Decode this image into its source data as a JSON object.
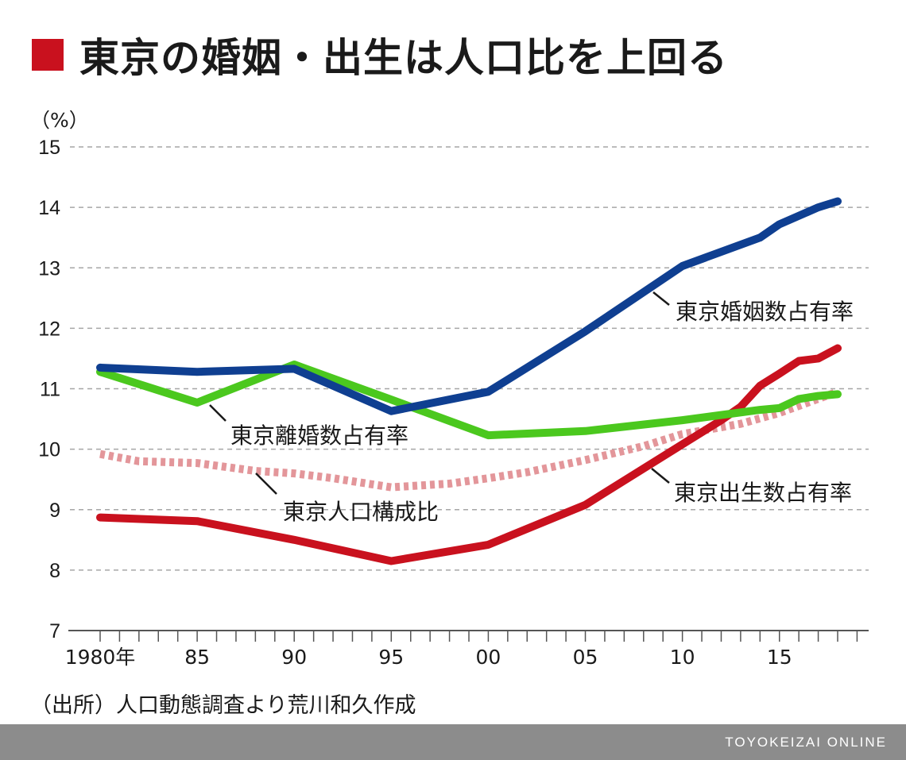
{
  "title": "東京の婚姻・出生は人口比を上回る",
  "source": "（出所）人口動態調査より荒川和久作成",
  "brand": "TOYOKEIZAI ONLINE",
  "colors": {
    "accent": "#c9111e",
    "marriage": "#0f3f91",
    "divorce": "#4bc81e",
    "birth": "#c9111e",
    "population": "#e3969a"
  },
  "chart_data": {
    "type": "line",
    "ylabel": "（%）",
    "ylim": [
      7,
      15
    ],
    "yticks": [
      "15",
      "14",
      "13",
      "12",
      "11",
      "10",
      "9",
      "8",
      "7"
    ],
    "xlim": [
      1980,
      2018
    ],
    "xticks": [
      {
        "year": 1980,
        "label": "1980年"
      },
      {
        "year": 1985,
        "label": "85"
      },
      {
        "year": 1990,
        "label": "90"
      },
      {
        "year": 1995,
        "label": "95"
      },
      {
        "year": 2000,
        "label": "00"
      },
      {
        "year": 2005,
        "label": "05"
      },
      {
        "year": 2010,
        "label": "10"
      },
      {
        "year": 2015,
        "label": "15"
      }
    ],
    "grid": true,
    "series": [
      {
        "name": "東京人口構成比",
        "color": "#e3969a",
        "style": "dotted",
        "points": [
          [
            1980,
            9.92
          ],
          [
            1982,
            9.8
          ],
          [
            1985,
            9.77
          ],
          [
            1988,
            9.64
          ],
          [
            1990,
            9.6
          ],
          [
            1992,
            9.52
          ],
          [
            1995,
            9.37
          ],
          [
            1998,
            9.43
          ],
          [
            2000,
            9.52
          ],
          [
            2002,
            9.62
          ],
          [
            2005,
            9.82
          ],
          [
            2008,
            10.05
          ],
          [
            2010,
            10.25
          ],
          [
            2013,
            10.42
          ],
          [
            2015,
            10.6
          ],
          [
            2018,
            10.95
          ]
        ]
      },
      {
        "name": "東京出生数占有率",
        "color": "#c9111e",
        "style": "solid",
        "points": [
          [
            1980,
            8.87
          ],
          [
            1985,
            8.81
          ],
          [
            1990,
            8.5
          ],
          [
            1995,
            8.15
          ],
          [
            2000,
            8.42
          ],
          [
            2005,
            9.08
          ],
          [
            2010,
            10.08
          ],
          [
            2012,
            10.48
          ],
          [
            2013,
            10.7
          ],
          [
            2014,
            11.05
          ],
          [
            2015,
            11.25
          ],
          [
            2016,
            11.46
          ],
          [
            2017,
            11.5
          ],
          [
            2018,
            11.67
          ]
        ]
      },
      {
        "name": "東京離婚数占有率",
        "color": "#4bc81e",
        "style": "solid",
        "points": [
          [
            1980,
            11.28
          ],
          [
            1985,
            10.77
          ],
          [
            1990,
            11.4
          ],
          [
            1995,
            10.82
          ],
          [
            2000,
            10.23
          ],
          [
            2005,
            10.3
          ],
          [
            2010,
            10.48
          ],
          [
            2014,
            10.65
          ],
          [
            2015,
            10.68
          ],
          [
            2016,
            10.83
          ],
          [
            2017,
            10.88
          ],
          [
            2018,
            10.91
          ]
        ]
      },
      {
        "name": "東京婚姻数占有率",
        "color": "#0f3f91",
        "style": "solid",
        "points": [
          [
            1980,
            11.35
          ],
          [
            1985,
            11.28
          ],
          [
            1990,
            11.33
          ],
          [
            1995,
            10.63
          ],
          [
            2000,
            10.95
          ],
          [
            2005,
            11.95
          ],
          [
            2010,
            13.03
          ],
          [
            2014,
            13.5
          ],
          [
            2015,
            13.72
          ],
          [
            2017,
            14.0
          ],
          [
            2018,
            14.1
          ]
        ]
      }
    ]
  }
}
